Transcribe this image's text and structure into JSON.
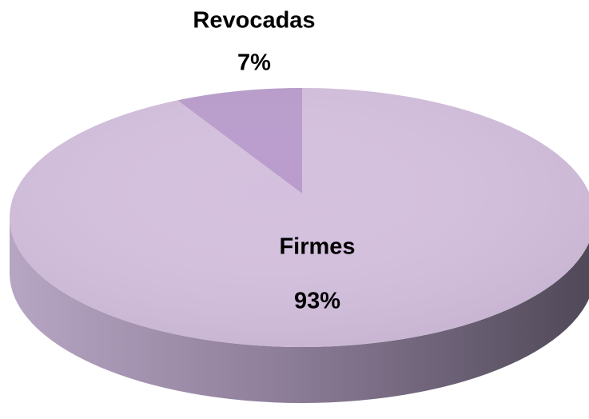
{
  "chart_data": {
    "type": "pie",
    "categories": [
      "Firmes",
      "Revocadas"
    ],
    "values": [
      93,
      7
    ],
    "value_labels": [
      "93%",
      "7%"
    ],
    "colors": [
      "#d4c0de",
      "#b99bcc"
    ]
  }
}
